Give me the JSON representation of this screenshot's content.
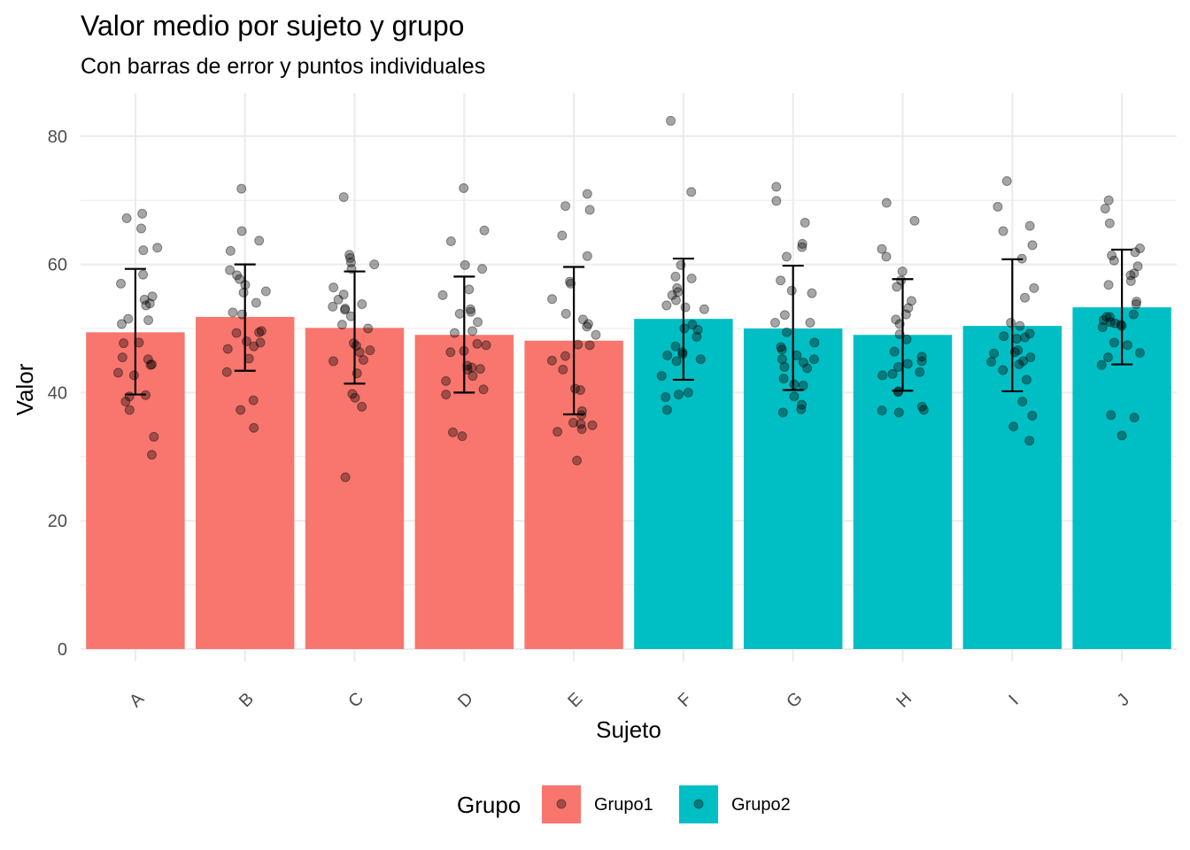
{
  "chart_data": {
    "type": "bar",
    "title": "Valor medio por sujeto y grupo",
    "subtitle": "Con barras de error y puntos individuales",
    "xlabel": "Sujeto",
    "ylabel": "Valor",
    "ylim": [
      -2,
      86.5
    ],
    "yticks": [
      0,
      20,
      40,
      60,
      80
    ],
    "grid": true,
    "categories": [
      "A",
      "B",
      "C",
      "D",
      "E",
      "F",
      "G",
      "H",
      "I",
      "J"
    ],
    "groups": [
      "Grupo1",
      "Grupo1",
      "Grupo1",
      "Grupo1",
      "Grupo1",
      "Grupo2",
      "Grupo2",
      "Grupo2",
      "Grupo2",
      "Grupo2"
    ],
    "values": [
      49.4,
      51.8,
      50.1,
      49.0,
      48.1,
      51.5,
      50.0,
      49.0,
      50.4,
      53.3
    ],
    "error_low": [
      39.7,
      43.4,
      41.4,
      40.0,
      36.6,
      42.0,
      40.4,
      40.3,
      40.2,
      44.4
    ],
    "error_high": [
      59.3,
      60.0,
      58.9,
      58.1,
      59.6,
      60.9,
      59.8,
      57.7,
      60.8,
      62.3
    ],
    "points": [
      [
        67.9,
        67.2,
        65.6,
        62.6,
        62.2,
        58.4,
        57.0,
        55.0,
        54.5,
        53.9,
        53.6,
        51.5,
        51.3,
        50.7,
        47.8,
        47.7,
        45.5,
        45.2,
        44.4,
        44.3,
        43.1,
        42.7,
        39.6,
        39.4,
        38.6,
        37.3,
        33.1,
        30.3
      ],
      [
        71.8,
        65.2,
        63.7,
        62.1,
        59.1,
        58.3,
        57.7,
        56.8,
        55.8,
        55.6,
        54.0,
        52.5,
        52.2,
        49.6,
        49.4,
        49.3,
        48.0,
        47.8,
        47.2,
        46.8,
        45.3,
        43.2,
        38.8,
        37.3,
        34.5
      ],
      [
        70.5,
        61.5,
        61.0,
        60.3,
        60.0,
        59.3,
        56.4,
        55.3,
        54.5,
        53.8,
        53.4,
        53.1,
        52.9,
        51.9,
        50.6,
        50.0,
        47.7,
        47.3,
        46.6,
        46.3,
        45.1,
        44.9,
        43.0,
        39.8,
        39.2,
        37.8,
        26.8
      ],
      [
        71.9,
        65.3,
        63.6,
        59.9,
        59.3,
        56.1,
        55.2,
        53.0,
        52.6,
        52.3,
        51.0,
        49.6,
        49.3,
        47.6,
        47.4,
        46.5,
        46.3,
        44.2,
        43.9,
        43.7,
        43.6,
        42.6,
        41.8,
        40.5,
        39.7,
        33.8,
        33.2
      ],
      [
        71.0,
        69.1,
        68.5,
        64.5,
        61.3,
        57.3,
        57.0,
        54.6,
        52.3,
        51.4,
        50.7,
        50.3,
        49.0,
        47.5,
        47.4,
        45.7,
        45.0,
        43.6,
        40.6,
        40.4,
        37.1,
        36.5,
        35.3,
        35.1,
        34.9,
        34.3,
        33.9,
        29.4
      ],
      [
        82.4,
        71.3,
        59.9,
        58.1,
        57.8,
        56.3,
        55.7,
        55.2,
        54.4,
        53.6,
        53.3,
        53.0,
        50.6,
        50.0,
        49.8,
        48.7,
        47.2,
        46.3,
        46.0,
        45.8,
        45.2,
        44.9,
        42.6,
        40.0,
        39.7,
        39.3,
        37.3
      ],
      [
        72.1,
        69.9,
        66.5,
        63.2,
        62.7,
        61.2,
        57.5,
        55.9,
        55.5,
        52.1,
        50.9,
        50.9,
        49.4,
        47.8,
        47.1,
        46.7,
        45.8,
        45.2,
        45.2,
        44.7,
        44.0,
        43.8,
        42.2,
        41.3,
        41.1,
        39.4,
        38.1,
        37.4,
        36.9
      ],
      [
        69.6,
        66.8,
        62.4,
        61.2,
        58.9,
        57.5,
        56.5,
        54.3,
        53.2,
        52.2,
        51.4,
        50.7,
        49.1,
        48.3,
        46.4,
        45.6,
        44.9,
        44.5,
        44.0,
        43.2,
        42.9,
        42.7,
        40.2,
        40.1,
        37.8,
        37.3,
        37.2,
        36.9
      ],
      [
        73.0,
        69.0,
        66.0,
        65.2,
        63.0,
        60.9,
        56.3,
        54.8,
        50.9,
        50.4,
        49.2,
        48.8,
        48.6,
        48.4,
        46.6,
        46.3,
        46.1,
        45.5,
        44.9,
        44.8,
        44.4,
        43.5,
        42.0,
        38.6,
        36.4,
        34.7,
        32.5
      ],
      [
        70.0,
        68.7,
        66.4,
        62.5,
        61.9,
        61.4,
        60.6,
        59.7,
        58.6,
        58.3,
        57.4,
        56.8,
        54.2,
        53.8,
        52.2,
        51.8,
        51.8,
        51.3,
        51.0,
        50.8,
        50.6,
        50.4,
        50.2,
        47.8,
        47.4,
        46.2,
        45.5,
        44.3,
        36.5,
        36.1,
        33.3
      ]
    ],
    "legend": {
      "title": "Grupo",
      "position": "bottom",
      "entries": [
        {
          "label": "Grupo1",
          "color": "#F8766D"
        },
        {
          "label": "Grupo2",
          "color": "#00BFC4"
        }
      ]
    },
    "colors": {
      "Grupo1": "#F8766D",
      "Grupo2": "#00BFC4"
    }
  }
}
